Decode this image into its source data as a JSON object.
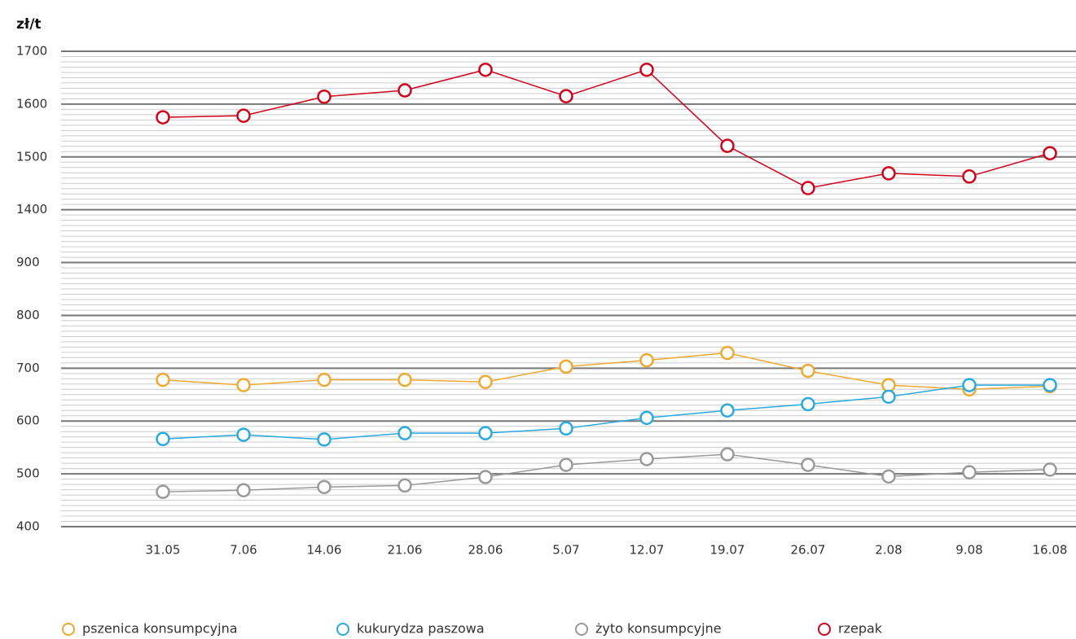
{
  "chart_data": {
    "type": "line",
    "y_label": "zł/t",
    "categories": [
      "31.05",
      "7.06",
      "14.06",
      "21.06",
      "28.06",
      "5.07",
      "12.07",
      "19.07",
      "26.07",
      "2.08",
      "9.08",
      "16.08"
    ],
    "yticks": [
      400,
      500,
      600,
      700,
      800,
      900,
      1400,
      1500,
      1600,
      1700
    ],
    "ylim": [
      400,
      1700
    ],
    "grid": true,
    "series": [
      {
        "name": "pszenica konsumpcyjna",
        "color": "#f0a830",
        "values": [
          678,
          668,
          678,
          678,
          674,
          703,
          715,
          729,
          695,
          668,
          660,
          666
        ]
      },
      {
        "name": "kukurydza paszowa",
        "color": "#29a9e0",
        "values": [
          566,
          574,
          565,
          577,
          577,
          586,
          606,
          620,
          632,
          646,
          668,
          668
        ]
      },
      {
        "name": "żyto konsumpcyjne",
        "color": "#999999",
        "values": [
          466,
          469,
          475,
          478,
          494,
          517,
          528,
          537,
          517,
          495,
          503,
          508
        ]
      },
      {
        "name": "rzepak",
        "color": "#d0021b",
        "values": [
          1575,
          1578,
          1614,
          1626,
          1665,
          1615,
          1665,
          1521,
          1441,
          1469,
          1463,
          1507
        ]
      }
    ]
  }
}
